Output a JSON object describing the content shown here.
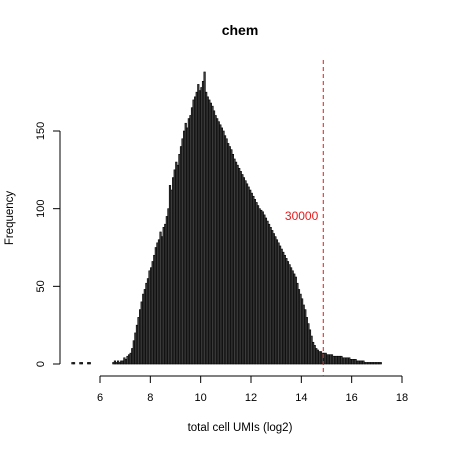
{
  "chart_data": {
    "type": "bar",
    "title": "chem",
    "xlabel": "total cell UMIs (log2)",
    "ylabel": "Frequency",
    "xlim": [
      5,
      18
    ],
    "ylim": [
      0,
      190
    ],
    "x_ticks": [
      "6",
      "8",
      "10",
      "12",
      "14",
      "16",
      "18"
    ],
    "y_ticks": [
      "0",
      "50",
      "100",
      "150"
    ],
    "bin_width": 0.0625,
    "bin_start": 4.875,
    "values": [
      1,
      1,
      0,
      0,
      0,
      1,
      1,
      0,
      0,
      0,
      1,
      1,
      0,
      0,
      0,
      0,
      0,
      0,
      0,
      0,
      0,
      0,
      0,
      0,
      0,
      0,
      1,
      2,
      1,
      2,
      1,
      2,
      2,
      4,
      3,
      5,
      6,
      7,
      10,
      15,
      20,
      25,
      30,
      35,
      40,
      45,
      48,
      52,
      55,
      60,
      62,
      66,
      70,
      75,
      78,
      80,
      85,
      82,
      88,
      90,
      95,
      100,
      115,
      112,
      120,
      125,
      130,
      128,
      135,
      140,
      145,
      150,
      155,
      152,
      158,
      160,
      165,
      170,
      172,
      175,
      180,
      176,
      178,
      182,
      188,
      175,
      172,
      170,
      168,
      166,
      163,
      160,
      158,
      156,
      154,
      152,
      150,
      147,
      145,
      142,
      140,
      138,
      135,
      132,
      130,
      128,
      126,
      124,
      122,
      120,
      118,
      116,
      114,
      112,
      110,
      108,
      106,
      104,
      102,
      100,
      99,
      98,
      96,
      94,
      92,
      90,
      88,
      86,
      84,
      82,
      80,
      78,
      76,
      74,
      72,
      70,
      68,
      66,
      64,
      62,
      60,
      58,
      56,
      52,
      48,
      45,
      42,
      38,
      35,
      30,
      26,
      22,
      18,
      14,
      12,
      10,
      9,
      8,
      8,
      7,
      7,
      7,
      6,
      6,
      6,
      6,
      5,
      5,
      5,
      5,
      5,
      5,
      4,
      4,
      4,
      4,
      4,
      3,
      3,
      3,
      3,
      2,
      2,
      2,
      2,
      2,
      1,
      1,
      1,
      1,
      1,
      1,
      1,
      1,
      1,
      1,
      1,
      0,
      0,
      0,
      0,
      0,
      0
    ],
    "threshold": {
      "x": 14.872,
      "label": "30000",
      "color": "#e41a1c"
    },
    "bar_color": "#404040",
    "grid": false,
    "legend": "none"
  }
}
